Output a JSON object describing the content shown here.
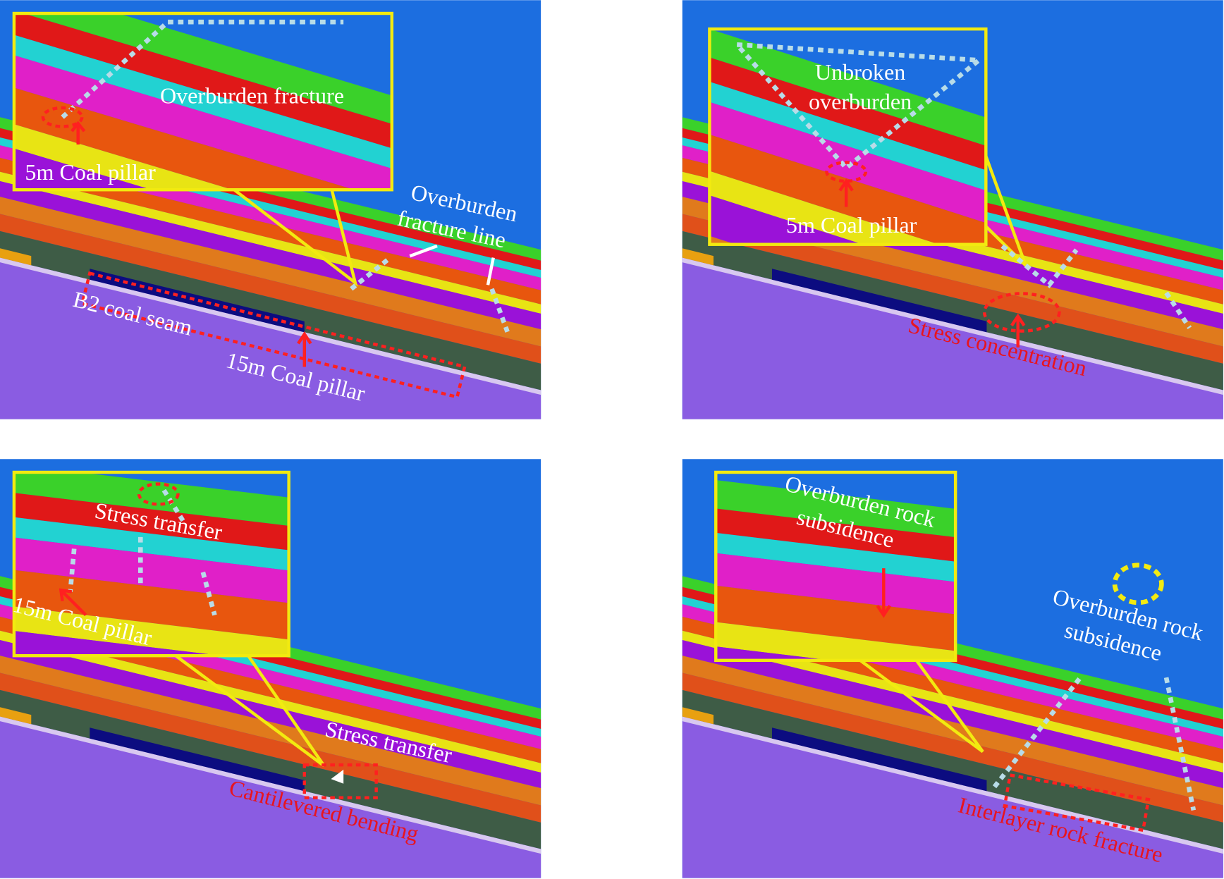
{
  "panels": [
    {
      "labels": [
        [
          "Overburden fracture"
        ],
        [
          "5m Coal pillar"
        ],
        [
          "Overburden",
          "fracture line"
        ],
        [
          "B2 coal seam"
        ],
        [
          "15m Coal pillar"
        ]
      ]
    },
    {
      "labels": [
        [
          "Unbroken",
          "overburden"
        ],
        [
          "5m Coal pillar"
        ],
        [
          "Stress concentration"
        ]
      ]
    },
    {
      "labels": [
        [
          "Stress transfer"
        ],
        [
          "15m Coal pillar"
        ],
        [
          "Stress transfer"
        ],
        [
          "Cantilevered bending"
        ]
      ]
    },
    {
      "labels": [
        [
          "Overburden rock",
          "subsidence"
        ],
        [
          "Overburden rock",
          "subsidence"
        ],
        [
          "Interlayer rock fracture"
        ]
      ]
    }
  ]
}
